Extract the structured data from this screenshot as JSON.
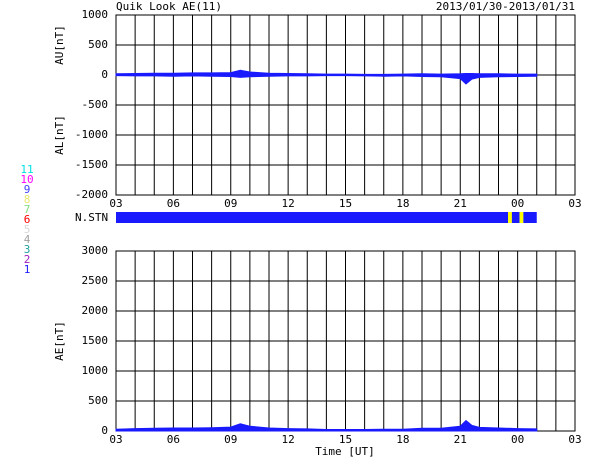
{
  "chart_data": [
    {
      "type": "area",
      "title": "Quik Look AE(11)",
      "subtitle": "2013/01/30-2013/01/31",
      "x": [
        0,
        1,
        2,
        3,
        4,
        5,
        6,
        6.5,
        7,
        7.5,
        8,
        9,
        10,
        11,
        12,
        13,
        14,
        15,
        16,
        17,
        18,
        18.3,
        18.6,
        19,
        20,
        21,
        22
      ],
      "series": [
        {
          "name": "AU[nT]",
          "color": "#1a1aff",
          "values": [
            20,
            25,
            30,
            30,
            35,
            35,
            40,
            80,
            50,
            40,
            30,
            25,
            20,
            15,
            15,
            10,
            10,
            15,
            20,
            15,
            20,
            25,
            25,
            20,
            20,
            15,
            15
          ]
        },
        {
          "name": "AL[nT]",
          "color": "#1a1aff",
          "values": [
            -10,
            -15,
            -15,
            -20,
            -15,
            -20,
            -25,
            -40,
            -30,
            -25,
            -20,
            -15,
            -15,
            -10,
            -10,
            -15,
            -20,
            -15,
            -25,
            -30,
            -60,
            -150,
            -70,
            -40,
            -30,
            -25,
            -20
          ]
        }
      ],
      "xlim": [
        0,
        24
      ],
      "xticks": [
        {
          "value": 0,
          "label": "03"
        },
        {
          "value": 3,
          "label": "06"
        },
        {
          "value": 6,
          "label": "09"
        },
        {
          "value": 9,
          "label": "12"
        },
        {
          "value": 12,
          "label": "15"
        },
        {
          "value": 15,
          "label": "18"
        },
        {
          "value": 18,
          "label": "21"
        },
        {
          "value": 21,
          "label": "00"
        },
        {
          "value": 24,
          "label": "03"
        }
      ],
      "xminor": [
        1,
        2,
        4,
        5,
        7,
        8,
        10,
        11,
        13,
        14,
        16,
        17,
        19,
        20,
        22,
        23
      ],
      "ylim": [
        -2000,
        1000
      ],
      "yticks": [
        1000,
        500,
        0,
        -500,
        -1000,
        -1500,
        -2000
      ],
      "grid": true
    },
    {
      "type": "stations",
      "label": "N.STN",
      "segments": [
        {
          "start": 0,
          "end": 20.5,
          "color": "#1a1aff"
        },
        {
          "start": 20.5,
          "end": 20.7,
          "color": "#ffff00"
        },
        {
          "start": 20.7,
          "end": 21.1,
          "color": "#1a1aff"
        },
        {
          "start": 21.1,
          "end": 21.3,
          "color": "#ffff00"
        },
        {
          "start": 21.3,
          "end": 22,
          "color": "#1a1aff"
        }
      ],
      "legend": [
        {
          "label": "11",
          "color": "#00e0e0"
        },
        {
          "label": "10",
          "color": "#ff00ff"
        },
        {
          "label": "9",
          "color": "#4040ff"
        },
        {
          "label": "8",
          "color": "#e8e870"
        },
        {
          "label": "7",
          "color": "#80e080"
        },
        {
          "label": "6",
          "color": "#ff0000"
        },
        {
          "label": "5",
          "color": "#d8d8d8"
        },
        {
          "label": "4",
          "color": "#a0a0a0"
        },
        {
          "label": "3",
          "color": "#20a0a0"
        },
        {
          "label": "2",
          "color": "#a020c0"
        },
        {
          "label": "1",
          "color": "#2020ff"
        }
      ]
    },
    {
      "type": "area",
      "xlabel": "Time [UT]",
      "x": [
        0,
        1,
        2,
        3,
        4,
        5,
        6,
        6.5,
        7,
        7.5,
        8,
        9,
        10,
        11,
        12,
        13,
        14,
        15,
        16,
        17,
        18,
        18.3,
        18.6,
        19,
        20,
        21,
        22
      ],
      "series": [
        {
          "name": "AE[nT]",
          "color": "#1a1aff",
          "values": [
            30,
            40,
            45,
            50,
            50,
            55,
            65,
            120,
            80,
            65,
            50,
            40,
            35,
            25,
            25,
            25,
            30,
            30,
            45,
            45,
            80,
            175,
            95,
            60,
            50,
            40,
            35
          ]
        }
      ],
      "xlim": [
        0,
        24
      ],
      "xticks": [
        {
          "value": 0,
          "label": "03"
        },
        {
          "value": 3,
          "label": "06"
        },
        {
          "value": 6,
          "label": "09"
        },
        {
          "value": 9,
          "label": "12"
        },
        {
          "value": 12,
          "label": "15"
        },
        {
          "value": 15,
          "label": "18"
        },
        {
          "value": 18,
          "label": "21"
        },
        {
          "value": 21,
          "label": "00"
        },
        {
          "value": 24,
          "label": "03"
        }
      ],
      "xminor": [
        1,
        2,
        4,
        5,
        7,
        8,
        10,
        11,
        13,
        14,
        16,
        17,
        19,
        20,
        22,
        23
      ],
      "ylim": [
        0,
        3000
      ],
      "yticks": [
        0,
        500,
        1000,
        1500,
        2000,
        2500,
        3000
      ],
      "grid": true
    }
  ]
}
